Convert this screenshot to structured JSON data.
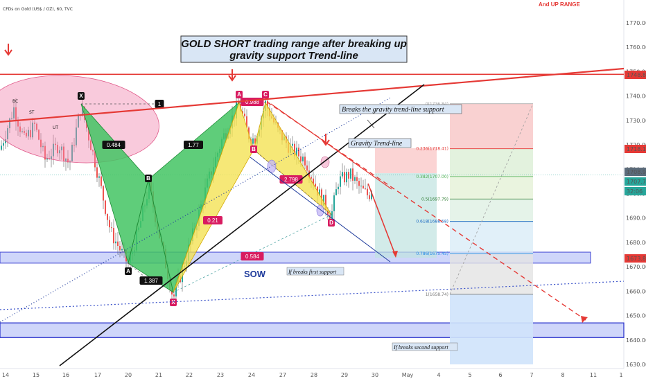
{
  "header": {
    "symbol_text": "CFDs on Gold (US$ / OZ), 60, TVC",
    "top_right_note": "And UP RANGE"
  },
  "chart_data": {
    "type": "line",
    "title": "GOLD SHORT trading range after breaking up",
    "subtitle": "gravity support Trend-line",
    "xlabel": "",
    "ylabel": "",
    "ylim": [
      1628,
      1785
    ],
    "x_tick_labels": [
      "14",
      "15",
      "16",
      "17",
      "20",
      "21",
      "22",
      "23",
      "24",
      "27",
      "28",
      "29",
      "30",
      "May",
      "4",
      "5",
      "6",
      "7",
      "8",
      "11",
      "1"
    ],
    "y_tick_values": [
      1630,
      1640,
      1650,
      1660,
      1670,
      1680,
      1690,
      1700,
      1710,
      1720,
      1730,
      1740,
      1750,
      1760,
      1770
    ],
    "price_tags": [
      {
        "value": "1748.89",
        "color": "#e53935"
      },
      {
        "value": "1718.15",
        "color": "#e53935"
      },
      {
        "value": "1708.90",
        "color": "#5b6b7a"
      },
      {
        "value": "1707.70",
        "color": "#26a69a"
      },
      {
        "value": "32:06",
        "color": "#26a69a"
      },
      {
        "value": "1673.89",
        "color": "#e53935"
      }
    ],
    "fibonacci": [
      {
        "label": "0(1736.84)",
        "price": 1736.84
      },
      {
        "label": "0.236(1718.41)",
        "price": 1718.41
      },
      {
        "label": "0.382(1707.00)",
        "price": 1707.0
      },
      {
        "label": "0.5(1697.79)",
        "price": 1697.79
      },
      {
        "label": "0.618(1688.58)",
        "price": 1688.58
      },
      {
        "label": "0.786(1675.45)",
        "price": 1675.45
      },
      {
        "label": "1(1658.74)",
        "price": 1658.74
      }
    ],
    "pattern_points": [
      {
        "label": "X",
        "price": 1736
      },
      {
        "label": "A",
        "price": 1671
      },
      {
        "label": "B",
        "price": 1703
      },
      {
        "label": "X",
        "price": 1657
      },
      {
        "label": "A",
        "price": 1737
      },
      {
        "label": "B",
        "price": 1723
      },
      {
        "label": "C",
        "price": 1737
      },
      {
        "label": "D",
        "price": 1691
      }
    ],
    "ratios": [
      "1",
      "0.484",
      "1.77",
      "1.387",
      "0.21",
      "0.988",
      "2.798",
      "0.584"
    ],
    "wyckoff_labels": [
      "BC",
      "ST",
      "UT"
    ],
    "annotations": {
      "breaks_gravity": "Breaks the gravity trend-line support",
      "gravity_trendline": "Gravity Trend-line",
      "sow": "SOW",
      "first_support": "If breaks first support",
      "second_support": "If breaks second support"
    },
    "support_zones": [
      {
        "name": "first support",
        "from": 1671.5,
        "to": 1676
      },
      {
        "name": "second support",
        "from": 1641,
        "to": 1647
      }
    ],
    "resistance_line_price": 1748.89,
    "current_price": 1707.7,
    "grid": false
  },
  "colors": {
    "red": "#e53935",
    "green_pattern": "#43c463",
    "yellow_pattern": "#f3e049",
    "pink_ellipse": "#f28ab1",
    "support_zone": "#a7b4f5",
    "pink_label": "#d81b60",
    "price_axis_bg": "#ffffff"
  }
}
